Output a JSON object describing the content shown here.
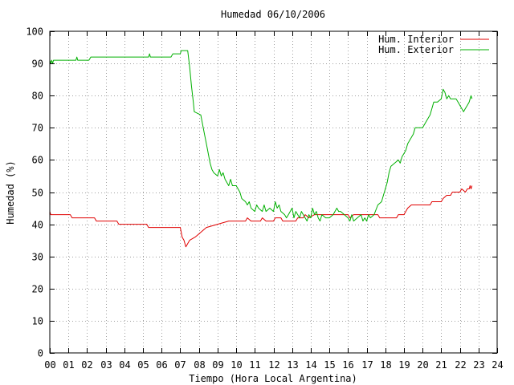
{
  "chart_data": {
    "type": "line",
    "title": "Humedad 06/10/2006",
    "xlabel": "Tiempo (Hora Local Argentina)",
    "ylabel": "Humedad (%)",
    "xlim": [
      0,
      24
    ],
    "ylim": [
      0,
      100
    ],
    "x_ticks": [
      "00",
      "01",
      "02",
      "03",
      "04",
      "05",
      "06",
      "07",
      "08",
      "09",
      "10",
      "11",
      "12",
      "13",
      "14",
      "15",
      "16",
      "17",
      "18",
      "19",
      "20",
      "21",
      "22",
      "23",
      "24"
    ],
    "y_ticks": [
      "0",
      "10",
      "20",
      "30",
      "40",
      "50",
      "60",
      "70",
      "80",
      "90",
      "100"
    ],
    "grid": true,
    "legend_position": "top-right",
    "series": [
      {
        "name": "Hum. Interior",
        "color": "#e00000",
        "points": [
          [
            0.0,
            44
          ],
          [
            0.05,
            43
          ],
          [
            1.1,
            43
          ],
          [
            1.2,
            42
          ],
          [
            2.4,
            42
          ],
          [
            2.5,
            41
          ],
          [
            3.6,
            41
          ],
          [
            3.7,
            40
          ],
          [
            5.2,
            40
          ],
          [
            5.3,
            39
          ],
          [
            7.0,
            39
          ],
          [
            7.1,
            36
          ],
          [
            7.2,
            35
          ],
          [
            7.3,
            33
          ],
          [
            7.4,
            34
          ],
          [
            7.5,
            35
          ],
          [
            7.8,
            36
          ],
          [
            8.0,
            37
          ],
          [
            8.2,
            38
          ],
          [
            8.4,
            39
          ],
          [
            9.0,
            40
          ],
          [
            9.6,
            41
          ],
          [
            10.5,
            41
          ],
          [
            10.6,
            42
          ],
          [
            10.8,
            41
          ],
          [
            11.3,
            41
          ],
          [
            11.4,
            42
          ],
          [
            11.6,
            41
          ],
          [
            12.0,
            41
          ],
          [
            12.1,
            42
          ],
          [
            12.4,
            42
          ],
          [
            12.5,
            41
          ],
          [
            13.2,
            41
          ],
          [
            13.3,
            42
          ],
          [
            13.6,
            42
          ],
          [
            13.7,
            43
          ],
          [
            13.9,
            42
          ],
          [
            14.2,
            43
          ],
          [
            16.0,
            43
          ],
          [
            16.1,
            42
          ],
          [
            16.3,
            43
          ],
          [
            17.6,
            43
          ],
          [
            17.7,
            42
          ],
          [
            18.6,
            42
          ],
          [
            18.7,
            43
          ],
          [
            19.0,
            43
          ],
          [
            19.2,
            45
          ],
          [
            19.4,
            46
          ],
          [
            20.4,
            46
          ],
          [
            20.5,
            47
          ],
          [
            21.0,
            47
          ],
          [
            21.1,
            48
          ],
          [
            21.3,
            49
          ],
          [
            21.5,
            49
          ],
          [
            21.6,
            50
          ],
          [
            22.0,
            50
          ],
          [
            22.1,
            51
          ],
          [
            22.3,
            50
          ],
          [
            22.4,
            51
          ],
          [
            22.5,
            51
          ],
          [
            22.55,
            52
          ],
          [
            22.6,
            51
          ],
          [
            22.65,
            52
          ]
        ]
      },
      {
        "name": "Hum. Exterior",
        "color": "#00b000",
        "points": [
          [
            0.0,
            91
          ],
          [
            0.05,
            90
          ],
          [
            0.1,
            91
          ],
          [
            0.15,
            90
          ],
          [
            0.2,
            91
          ],
          [
            1.4,
            91
          ],
          [
            1.45,
            92
          ],
          [
            1.5,
            91
          ],
          [
            2.1,
            91
          ],
          [
            2.2,
            92
          ],
          [
            5.3,
            92
          ],
          [
            5.35,
            93
          ],
          [
            5.4,
            92
          ],
          [
            6.5,
            92
          ],
          [
            6.6,
            93
          ],
          [
            7.0,
            93
          ],
          [
            7.05,
            94
          ],
          [
            7.4,
            94
          ],
          [
            7.5,
            89
          ],
          [
            7.6,
            83
          ],
          [
            7.7,
            78
          ],
          [
            7.75,
            75
          ],
          [
            8.1,
            74
          ],
          [
            8.2,
            71
          ],
          [
            8.3,
            68
          ],
          [
            8.4,
            65
          ],
          [
            8.5,
            62
          ],
          [
            8.6,
            59
          ],
          [
            8.7,
            57
          ],
          [
            8.8,
            56
          ],
          [
            9.0,
            55
          ],
          [
            9.1,
            57
          ],
          [
            9.2,
            55
          ],
          [
            9.3,
            56
          ],
          [
            9.4,
            54
          ],
          [
            9.5,
            53
          ],
          [
            9.6,
            52
          ],
          [
            9.7,
            54
          ],
          [
            9.8,
            52
          ],
          [
            10.0,
            52
          ],
          [
            10.1,
            51
          ],
          [
            10.2,
            50
          ],
          [
            10.3,
            48
          ],
          [
            10.5,
            47
          ],
          [
            10.6,
            46
          ],
          [
            10.7,
            47
          ],
          [
            10.8,
            45
          ],
          [
            11.0,
            44
          ],
          [
            11.1,
            46
          ],
          [
            11.2,
            45
          ],
          [
            11.4,
            44
          ],
          [
            11.5,
            46
          ],
          [
            11.6,
            44
          ],
          [
            11.8,
            45
          ],
          [
            12.0,
            44
          ],
          [
            12.1,
            47
          ],
          [
            12.2,
            45
          ],
          [
            12.3,
            46
          ],
          [
            12.4,
            44
          ],
          [
            12.6,
            43
          ],
          [
            12.7,
            42
          ],
          [
            12.8,
            43
          ],
          [
            13.0,
            45
          ],
          [
            13.1,
            42
          ],
          [
            13.2,
            44
          ],
          [
            13.3,
            43
          ],
          [
            13.4,
            42
          ],
          [
            13.5,
            44
          ],
          [
            13.6,
            43
          ],
          [
            13.8,
            41
          ],
          [
            13.9,
            43
          ],
          [
            14.0,
            42
          ],
          [
            14.1,
            45
          ],
          [
            14.2,
            43
          ],
          [
            14.3,
            44
          ],
          [
            14.4,
            42
          ],
          [
            14.5,
            41
          ],
          [
            14.6,
            43
          ],
          [
            14.8,
            42
          ],
          [
            15.0,
            42
          ],
          [
            15.2,
            43
          ],
          [
            15.4,
            45
          ],
          [
            15.5,
            44
          ],
          [
            15.6,
            44
          ],
          [
            15.8,
            43
          ],
          [
            16.0,
            42
          ],
          [
            16.1,
            41
          ],
          [
            16.2,
            43
          ],
          [
            16.3,
            41
          ],
          [
            16.5,
            42
          ],
          [
            16.7,
            43
          ],
          [
            16.8,
            41
          ],
          [
            16.9,
            42
          ],
          [
            17.0,
            41
          ],
          [
            17.1,
            43
          ],
          [
            17.2,
            42
          ],
          [
            17.4,
            43
          ],
          [
            17.6,
            46
          ],
          [
            17.8,
            47
          ],
          [
            17.9,
            49
          ],
          [
            18.0,
            51
          ],
          [
            18.1,
            53
          ],
          [
            18.2,
            56
          ],
          [
            18.3,
            58
          ],
          [
            18.5,
            59
          ],
          [
            18.7,
            60
          ],
          [
            18.8,
            59
          ],
          [
            18.9,
            61
          ],
          [
            19.0,
            62
          ],
          [
            19.1,
            63
          ],
          [
            19.2,
            65
          ],
          [
            19.3,
            66
          ],
          [
            19.5,
            68
          ],
          [
            19.6,
            70
          ],
          [
            19.8,
            70
          ],
          [
            20.0,
            70
          ],
          [
            20.2,
            72
          ],
          [
            20.4,
            74
          ],
          [
            20.5,
            76
          ],
          [
            20.6,
            78
          ],
          [
            20.7,
            78
          ],
          [
            20.8,
            78
          ],
          [
            21.0,
            79
          ],
          [
            21.1,
            82
          ],
          [
            21.2,
            81
          ],
          [
            21.3,
            79
          ],
          [
            21.4,
            80
          ],
          [
            21.5,
            79
          ],
          [
            21.6,
            79
          ],
          [
            21.8,
            79
          ],
          [
            21.9,
            78
          ],
          [
            22.0,
            77
          ],
          [
            22.1,
            76
          ],
          [
            22.2,
            75
          ],
          [
            22.3,
            76
          ],
          [
            22.4,
            77
          ],
          [
            22.5,
            78
          ],
          [
            22.6,
            80
          ],
          [
            22.65,
            79
          ]
        ]
      }
    ]
  }
}
